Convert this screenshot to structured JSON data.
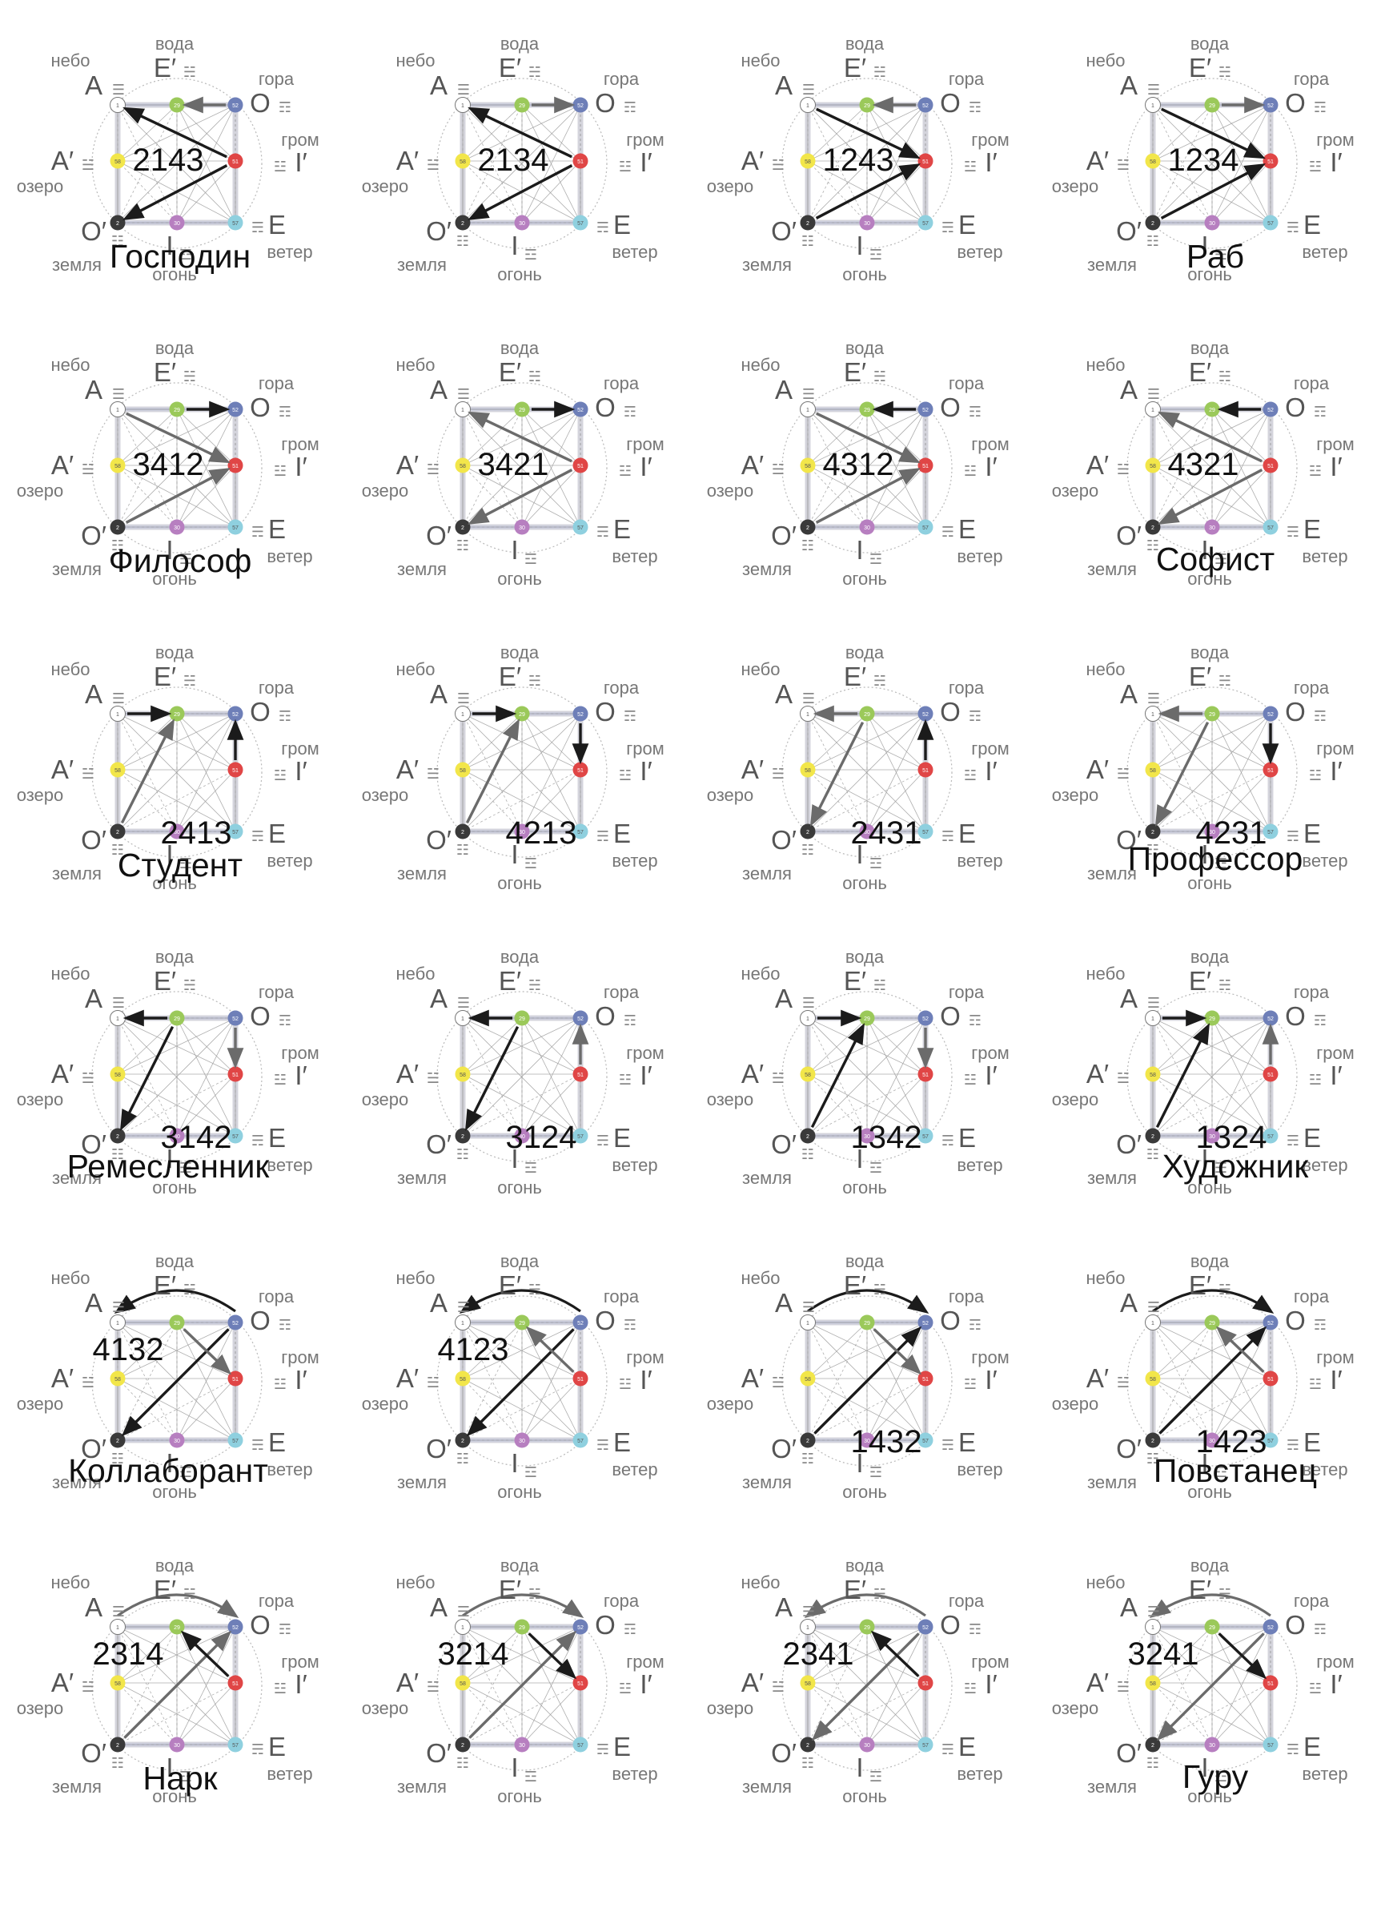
{
  "labels": {
    "sky": "небо",
    "water": "вода",
    "mountain": "гора",
    "thunder": "гром",
    "lake": "озеро",
    "earth": "земля",
    "fire": "огонь",
    "wind": "ветер",
    "A": "A",
    "E_prime": "E′",
    "O": "O",
    "I_prime": "I′",
    "A_prime": "A′",
    "O_prime": "O′",
    "I": "I",
    "E": "E"
  },
  "trigrams": {
    "sky": "☰",
    "water": "☵",
    "mountain": "☶",
    "thunder": "☳",
    "lake": "☱",
    "earth": "☷",
    "fire": "☲",
    "wind": "☴"
  },
  "node_numbers": {
    "A": "1",
    "E_prime": "29",
    "O": "52",
    "A_prime": "58",
    "I_prime": "51",
    "O_prime": "2",
    "I": "30",
    "E": "57"
  },
  "colors": {
    "A": "#ffffff",
    "E_prime": "#9bc95a",
    "O": "#6e7fb8",
    "A_prime": "#f2e64a",
    "I_prime": "#e04646",
    "O_prime": "#3a3a3a",
    "I": "#b77fc0",
    "E": "#8fd0df",
    "arrow_primary": "#1b1b1b",
    "arrow_secondary": "#6b6b6b",
    "grid": "#d4d4dc",
    "text": "#555555"
  },
  "panels": [
    {
      "code": "2143",
      "title": "Господин",
      "code_pos": "upper",
      "title_pos": "left-lower",
      "arrows": [
        [
          "I_prime",
          "A",
          "k"
        ],
        [
          "I_prime",
          "O_prime",
          "k"
        ],
        [
          "O",
          "E_prime",
          "g"
        ]
      ]
    },
    {
      "code": "2134",
      "title": "",
      "code_pos": "upper",
      "title_pos": "",
      "arrows": [
        [
          "I_prime",
          "A",
          "k"
        ],
        [
          "I_prime",
          "O_prime",
          "k"
        ],
        [
          "E_prime",
          "O",
          "g"
        ]
      ]
    },
    {
      "code": "1243",
      "title": "",
      "code_pos": "upper",
      "title_pos": "",
      "arrows": [
        [
          "A",
          "I_prime",
          "k"
        ],
        [
          "O_prime",
          "I_prime",
          "k"
        ],
        [
          "O",
          "E_prime",
          "g"
        ]
      ]
    },
    {
      "code": "1234",
      "title": "Раб",
      "code_pos": "upper",
      "title_pos": "center-lower",
      "arrows": [
        [
          "A",
          "I_prime",
          "k"
        ],
        [
          "O_prime",
          "I_prime",
          "k"
        ],
        [
          "E_prime",
          "O",
          "g"
        ]
      ]
    },
    {
      "code": "3412",
      "title": "Философ",
      "code_pos": "upper",
      "title_pos": "left-lower",
      "arrows": [
        [
          "E_prime",
          "O",
          "k"
        ],
        [
          "A",
          "I_prime",
          "g"
        ],
        [
          "O_prime",
          "I_prime",
          "g"
        ]
      ]
    },
    {
      "code": "3421",
      "title": "",
      "code_pos": "upper",
      "title_pos": "",
      "arrows": [
        [
          "E_prime",
          "O",
          "k"
        ],
        [
          "I_prime",
          "A",
          "g"
        ],
        [
          "I_prime",
          "O_prime",
          "g"
        ]
      ]
    },
    {
      "code": "4312",
      "title": "",
      "code_pos": "upper",
      "title_pos": "",
      "arrows": [
        [
          "O",
          "E_prime",
          "k"
        ],
        [
          "A",
          "I_prime",
          "g"
        ],
        [
          "O_prime",
          "I_prime",
          "g"
        ]
      ]
    },
    {
      "code": "4321",
      "title": "Софист",
      "code_pos": "upper",
      "title_pos": "right-lower",
      "arrows": [
        [
          "O",
          "E_prime",
          "k"
        ],
        [
          "I_prime",
          "A",
          "g"
        ],
        [
          "I_prime",
          "O_prime",
          "g"
        ]
      ]
    },
    {
      "code": "2413",
      "title": "Студент",
      "code_pos": "lower",
      "title_pos": "left-lower",
      "arrows": [
        [
          "A",
          "E_prime",
          "k"
        ],
        [
          "I_prime",
          "O",
          "k"
        ],
        [
          "O_prime",
          "E_prime",
          "g"
        ]
      ]
    },
    {
      "code": "4213",
      "title": "",
      "code_pos": "lower",
      "title_pos": "",
      "arrows": [
        [
          "A",
          "E_prime",
          "k"
        ],
        [
          "O",
          "I_prime",
          "k"
        ],
        [
          "O_prime",
          "E_prime",
          "g"
        ]
      ]
    },
    {
      "code": "2431",
      "title": "",
      "code_pos": "lower",
      "title_pos": "",
      "arrows": [
        [
          "E_prime",
          "A",
          "g"
        ],
        [
          "I_prime",
          "O",
          "k"
        ],
        [
          "E_prime",
          "O_prime",
          "g"
        ]
      ]
    },
    {
      "code": "4231",
      "title": "Профессор",
      "code_pos": "lower",
      "title_pos": "wide-lower",
      "arrows": [
        [
          "E_prime",
          "A",
          "g"
        ],
        [
          "O",
          "I_prime",
          "k"
        ],
        [
          "E_prime",
          "O_prime",
          "g"
        ]
      ]
    },
    {
      "code": "3142",
      "title": "Ремесленник",
      "code_pos": "lower",
      "title_pos": "wide-left",
      "arrows": [
        [
          "E_prime",
          "A",
          "k"
        ],
        [
          "E_prime",
          "O_prime",
          "k"
        ],
        [
          "O",
          "I_prime",
          "g"
        ]
      ]
    },
    {
      "code": "3124",
      "title": "",
      "code_pos": "lower",
      "title_pos": "",
      "arrows": [
        [
          "E_prime",
          "A",
          "k"
        ],
        [
          "E_prime",
          "O_prime",
          "k"
        ],
        [
          "I_prime",
          "O",
          "g"
        ]
      ]
    },
    {
      "code": "1342",
      "title": "",
      "code_pos": "lower",
      "title_pos": "",
      "arrows": [
        [
          "A",
          "E_prime",
          "k"
        ],
        [
          "O_prime",
          "E_prime",
          "k"
        ],
        [
          "O",
          "I_prime",
          "g"
        ]
      ]
    },
    {
      "code": "1324",
      "title": "Художник",
      "code_pos": "lower",
      "title_pos": "right-wide",
      "arrows": [
        [
          "A",
          "E_prime",
          "k"
        ],
        [
          "O_prime",
          "E_prime",
          "k"
        ],
        [
          "I_prime",
          "O",
          "g"
        ]
      ]
    },
    {
      "code": "4132",
      "title": "Коллаборант",
      "code_pos": "upper-left",
      "title_pos": "wide-left",
      "arrows": [
        [
          "O",
          "A",
          "k",
          "arc"
        ],
        [
          "O",
          "O_prime",
          "k"
        ],
        [
          "E_prime",
          "I_prime",
          "g"
        ]
      ]
    },
    {
      "code": "4123",
      "title": "",
      "code_pos": "upper-left",
      "title_pos": "",
      "arrows": [
        [
          "O",
          "A",
          "k",
          "arc"
        ],
        [
          "O",
          "O_prime",
          "k"
        ],
        [
          "I_prime",
          "E_prime",
          "g"
        ]
      ]
    },
    {
      "code": "1432",
      "title": "",
      "code_pos": "lower",
      "title_pos": "",
      "arrows": [
        [
          "A",
          "O",
          "k",
          "arc"
        ],
        [
          "O_prime",
          "O",
          "k"
        ],
        [
          "E_prime",
          "I_prime",
          "g"
        ]
      ]
    },
    {
      "code": "1423",
      "title": "Повстанец",
      "code_pos": "lower",
      "title_pos": "right-wide",
      "arrows": [
        [
          "A",
          "O",
          "k",
          "arc"
        ],
        [
          "O_prime",
          "O",
          "k"
        ],
        [
          "I_prime",
          "E_prime",
          "g"
        ]
      ]
    },
    {
      "code": "2314",
      "title": "Нарк",
      "code_pos": "upper-left",
      "title_pos": "center-lower",
      "arrows": [
        [
          "A",
          "O",
          "g",
          "arc"
        ],
        [
          "O_prime",
          "O",
          "g"
        ],
        [
          "I_prime",
          "E_prime",
          "k"
        ]
      ]
    },
    {
      "code": "3214",
      "title": "",
      "code_pos": "upper-left",
      "title_pos": "",
      "arrows": [
        [
          "A",
          "O",
          "g",
          "arc"
        ],
        [
          "O_prime",
          "O",
          "g"
        ],
        [
          "E_prime",
          "I_prime",
          "k"
        ]
      ]
    },
    {
      "code": "2341",
      "title": "",
      "code_pos": "upper-left",
      "title_pos": "",
      "arrows": [
        [
          "O",
          "A",
          "g",
          "arc"
        ],
        [
          "O",
          "O_prime",
          "g"
        ],
        [
          "I_prime",
          "E_prime",
          "k"
        ]
      ]
    },
    {
      "code": "3241",
      "title": "Гуру",
      "code_pos": "upper-left",
      "title_pos": "right-lower",
      "arrows": [
        [
          "O",
          "A",
          "g",
          "arc"
        ],
        [
          "O",
          "O_prime",
          "g"
        ],
        [
          "E_prime",
          "I_prime",
          "k"
        ]
      ]
    }
  ]
}
